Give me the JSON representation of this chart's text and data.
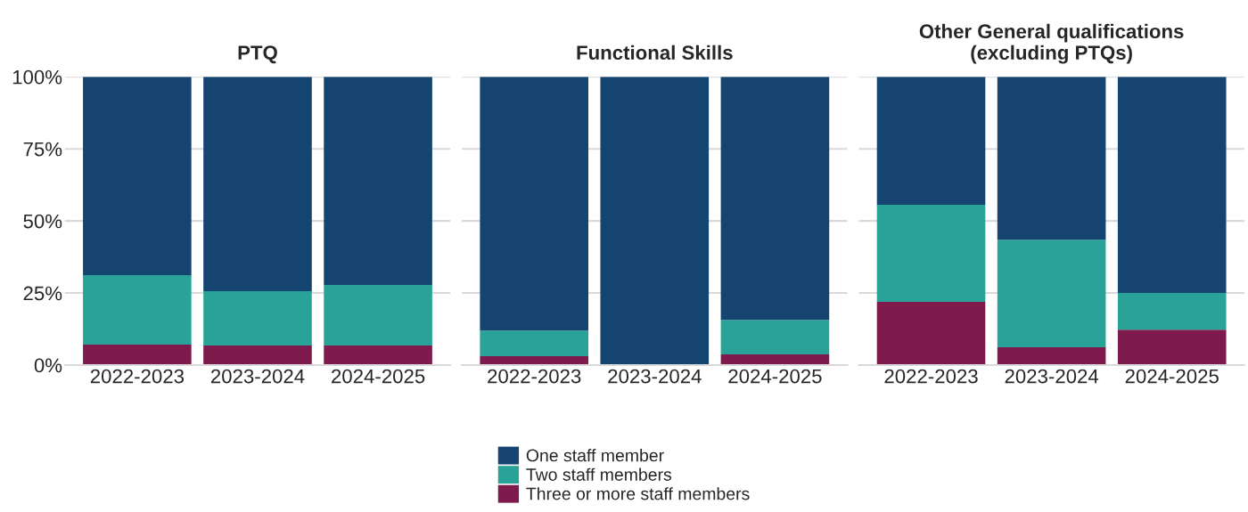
{
  "chart_data": [
    {
      "type": "bar",
      "title": "PTQ",
      "stacked": true,
      "categories": [
        "2022-2023",
        "2023-2024",
        "2024-2025"
      ],
      "ylim": [
        0,
        100
      ],
      "yticks": [
        {
          "value": 0,
          "label": "0%"
        },
        {
          "value": 25,
          "label": "25%"
        },
        {
          "value": 50,
          "label": "50%"
        },
        {
          "value": 75,
          "label": "75%"
        },
        {
          "value": 100,
          "label": "100%"
        }
      ],
      "grid": "y",
      "legend": "bottom",
      "series": [
        {
          "name": "Three or more staff members",
          "color": "#7f1a4d",
          "values": [
            7.1,
            6.8,
            6.8
          ]
        },
        {
          "name": "Two staff members",
          "color": "#29a398",
          "values": [
            24.1,
            18.8,
            21.0
          ]
        },
        {
          "name": "One staff member",
          "color": "#154470",
          "values": [
            68.8,
            74.4,
            72.2
          ]
        }
      ]
    },
    {
      "type": "bar",
      "title": "Functional Skills",
      "stacked": true,
      "categories": [
        "2022-2023",
        "2023-2024",
        "2024-2025"
      ],
      "ylim": [
        0,
        100
      ],
      "yticks": [
        0,
        25,
        50,
        75,
        100
      ],
      "grid": "y",
      "legend": "bottom",
      "tick_labels": "x",
      "series": [
        {
          "name": "Three or more staff members",
          "color": "#7f1a4d",
          "values": [
            3.1,
            0,
            3.7
          ]
        },
        {
          "name": "Two staff members",
          "color": "#29a398",
          "values": [
            8.9,
            0,
            12.0
          ]
        },
        {
          "name": "One staff member",
          "color": "#154470",
          "values": [
            88.0,
            100,
            84.3
          ]
        }
      ]
    },
    {
      "type": "bar",
      "title": "Other General qualifications\n(excluding PTQs)",
      "stacked": true,
      "categories": [
        "2022-2023",
        "2023-2024",
        "2024-2025"
      ],
      "ylim": [
        0,
        100
      ],
      "yticks": [
        0,
        25,
        50,
        75,
        100
      ],
      "grid": "y",
      "legend": "bottom",
      "tick_labels": "x",
      "series": [
        {
          "name": "Three or more staff members",
          "color": "#7f1a4d",
          "values": [
            21.9,
            6.2,
            12.3
          ]
        },
        {
          "name": "Two staff members",
          "color": "#29a398",
          "values": [
            33.7,
            37.3,
            12.7
          ]
        },
        {
          "name": "One staff member",
          "color": "#154470",
          "values": [
            44.4,
            56.5,
            75.0
          ]
        }
      ]
    }
  ]
}
